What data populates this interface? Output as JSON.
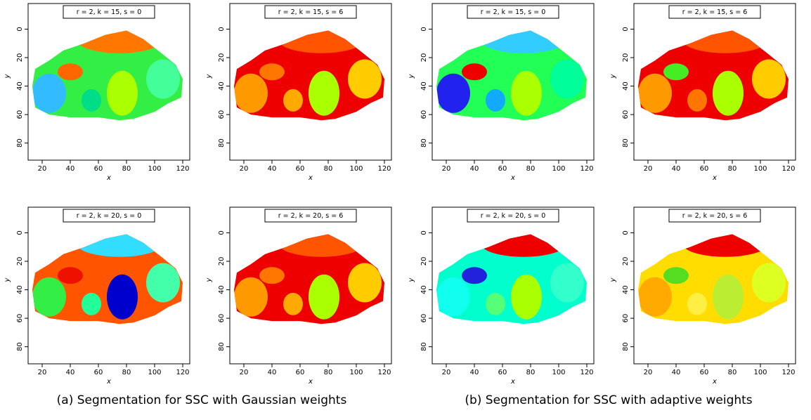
{
  "axes": {
    "x_label": "x",
    "y_label": "y",
    "xlim": [
      10,
      125
    ],
    "ylim": [
      -18,
      92
    ],
    "xticks": [
      20,
      40,
      60,
      80,
      100,
      120
    ],
    "yticks": [
      0,
      20,
      40,
      60,
      80
    ]
  },
  "panels": [
    {
      "title": "r = 2, k = 15, s = 0"
    },
    {
      "title": "r = 2, k = 15, s = 6"
    },
    {
      "title": "r = 2, k = 15, s = 0"
    },
    {
      "title": "r = 2, k = 15, s = 6"
    },
    {
      "title": "r = 2, k = 20, s = 0"
    },
    {
      "title": "r = 2, k = 20, s = 6"
    },
    {
      "title": "r = 2, k = 20, s = 0"
    },
    {
      "title": "r = 2, k = 20, s = 6"
    }
  ],
  "captions": [
    "(a) Segmentation for SSC with Gaussian weights",
    "(b) Segmentation for SSC with adaptive weights"
  ]
}
